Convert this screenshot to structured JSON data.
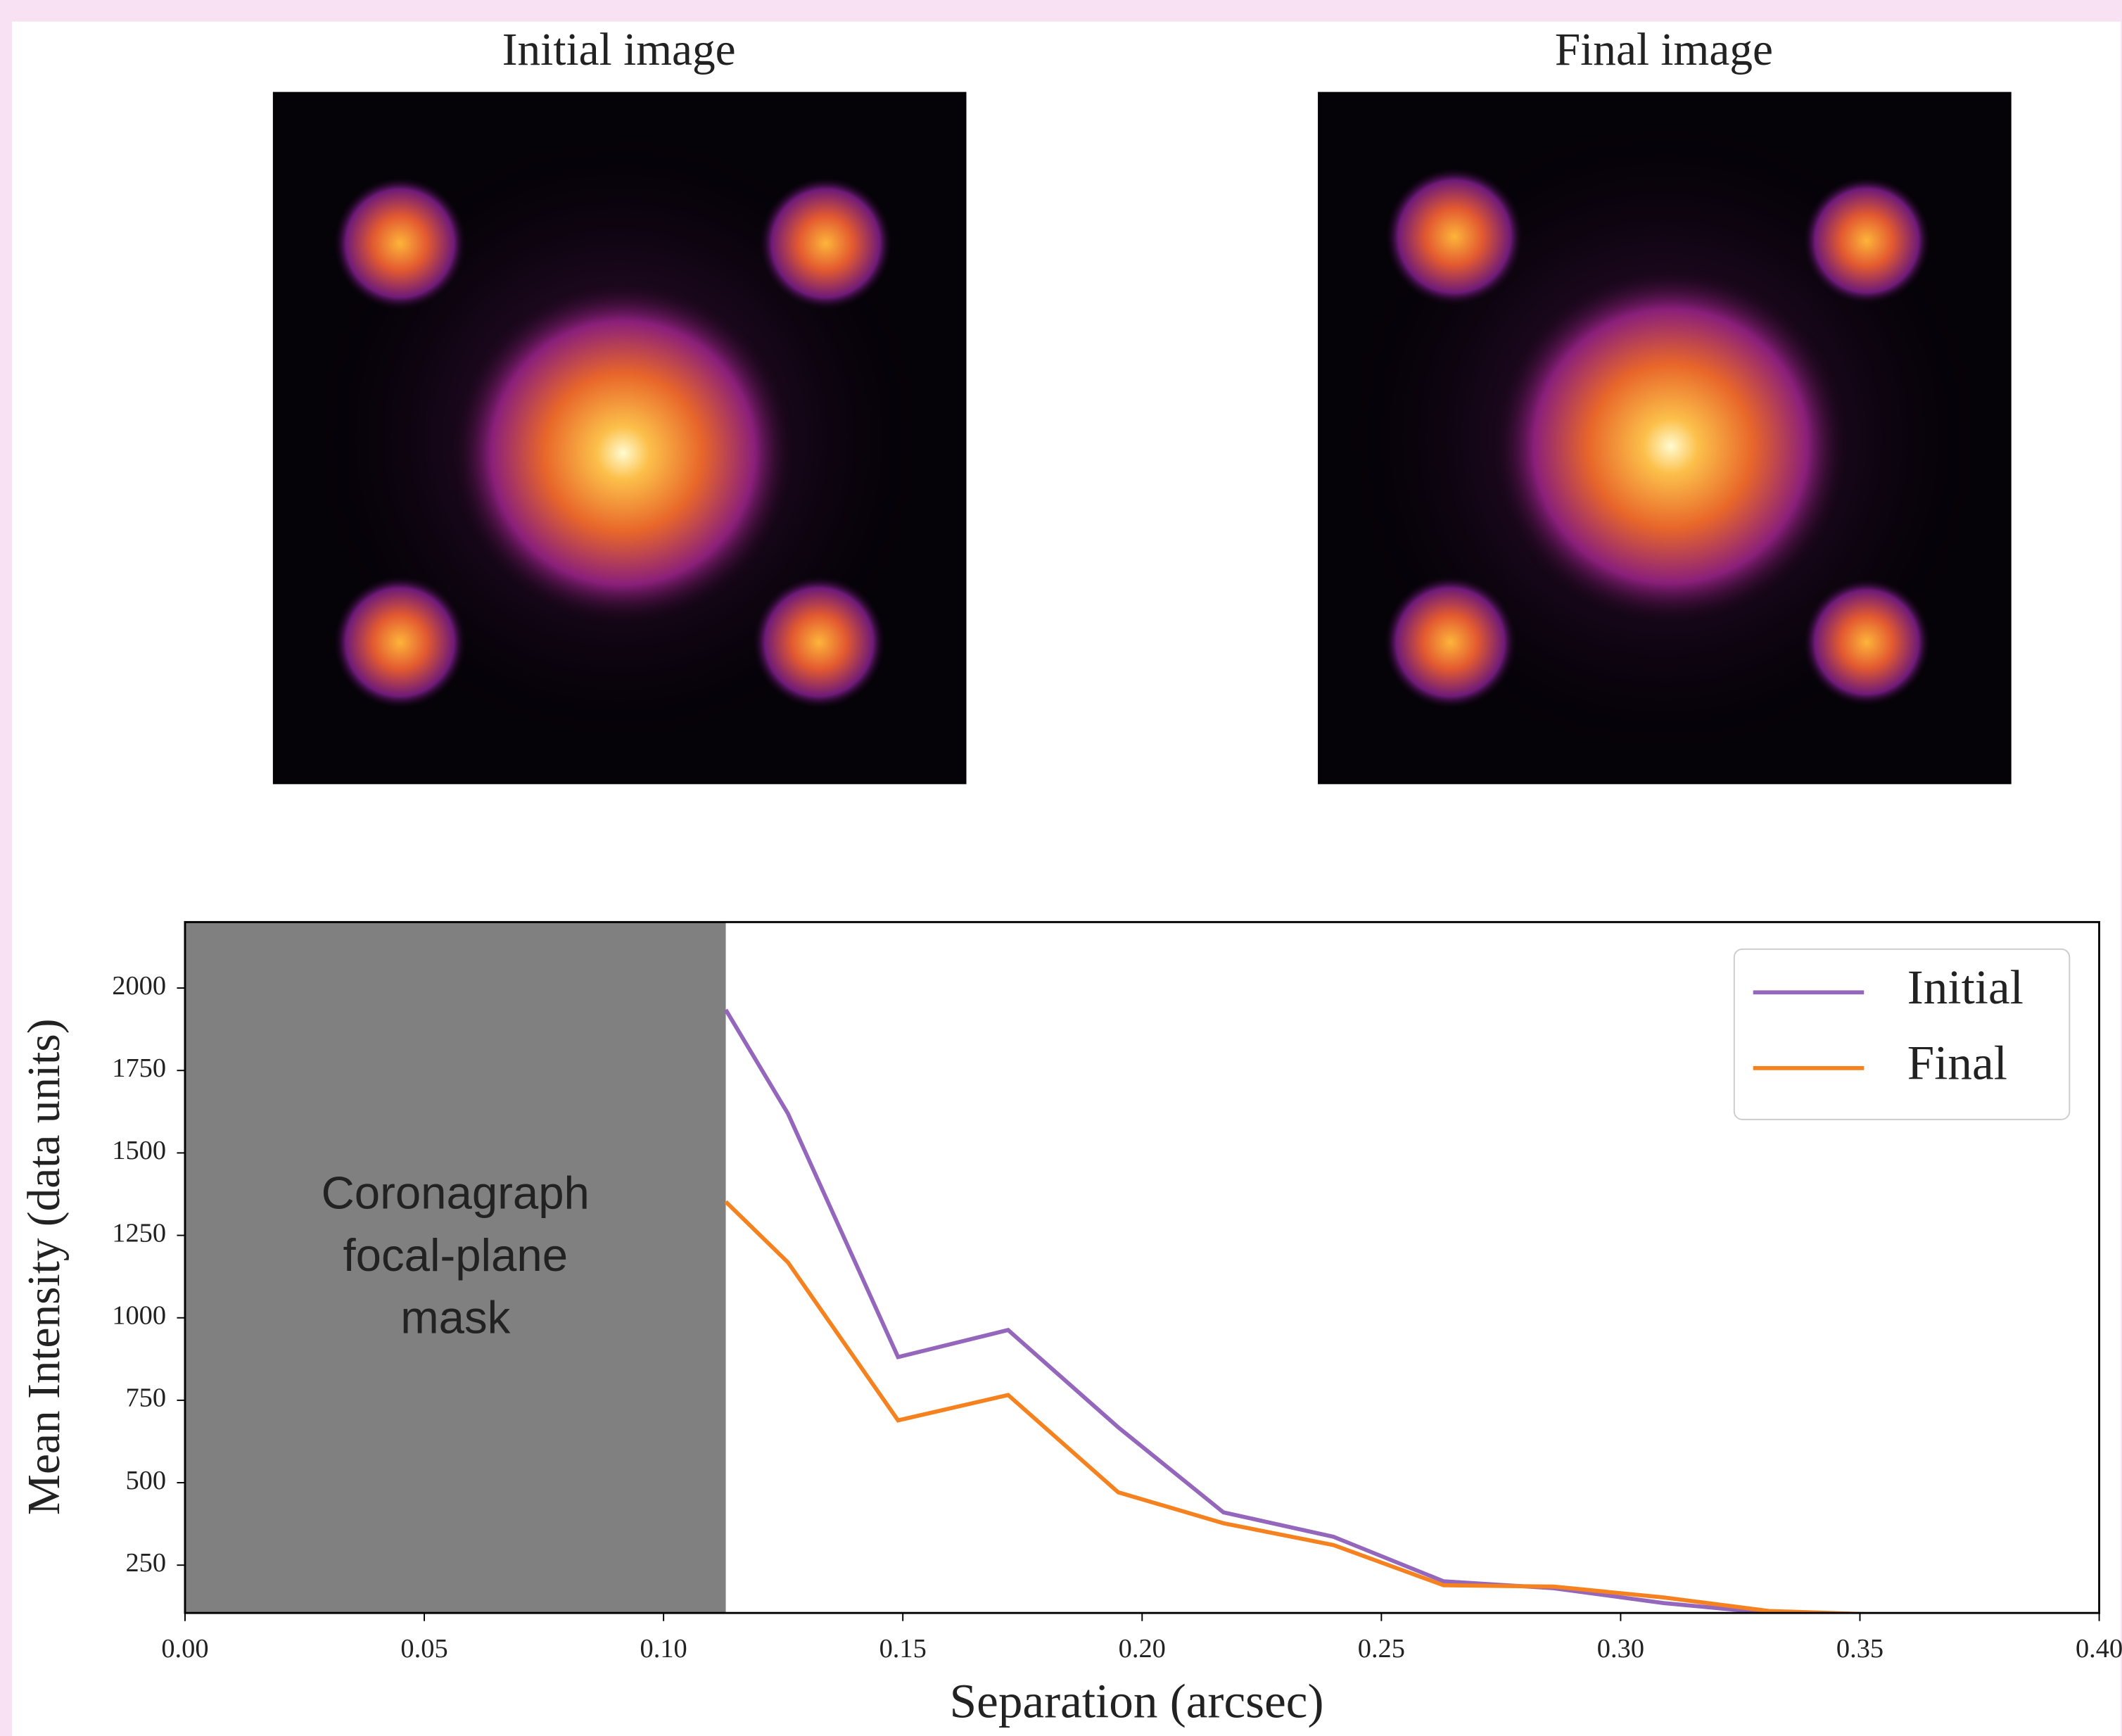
{
  "images": [
    {
      "title": "Initial image"
    },
    {
      "title": "Final image"
    }
  ],
  "chart_data": {
    "type": "line",
    "xlabel": "Separation (arcsec)",
    "ylabel": "Mean Intensity (data units)",
    "x": [
      0.113,
      0.126,
      0.149,
      0.172,
      0.195,
      0.217,
      0.24,
      0.263,
      0.286,
      0.309,
      0.331,
      0.354
    ],
    "series": [
      {
        "name": "Initial",
        "color": "#9467bd",
        "values": [
          1934,
          1619,
          881,
          963,
          668,
          410,
          336,
          201,
          180,
          135,
          105,
          100
        ]
      },
      {
        "name": "Final",
        "color": "#f5821f",
        "values": [
          1352,
          1168,
          689,
          766,
          471,
          377,
          311,
          189,
          185,
          152,
          111,
          100
        ]
      }
    ],
    "xlim": [
      0,
      0.4
    ],
    "ylim": [
      105,
      2200
    ],
    "xticks": [
      {
        "value": 0,
        "label": "0.00"
      },
      {
        "value": 0.05,
        "label": "0.05"
      },
      {
        "value": 0.1,
        "label": "0.10"
      },
      {
        "value": 0.15,
        "label": "0.15"
      },
      {
        "value": 0.2,
        "label": "0.20"
      },
      {
        "value": 0.25,
        "label": "0.25"
      },
      {
        "value": 0.3,
        "label": "0.30"
      },
      {
        "value": 0.35,
        "label": "0.35"
      },
      {
        "value": 0.4,
        "label": "0.40"
      }
    ],
    "yticks": [
      250,
      500,
      750,
      1000,
      1250,
      1500,
      1750,
      2000
    ],
    "shaded_region": {
      "xlim": [
        0,
        0.113
      ],
      "color": "#808080",
      "label_lines": [
        "Coronagraph",
        "focal-plane",
        "mask"
      ]
    },
    "legend": "upper right"
  }
}
